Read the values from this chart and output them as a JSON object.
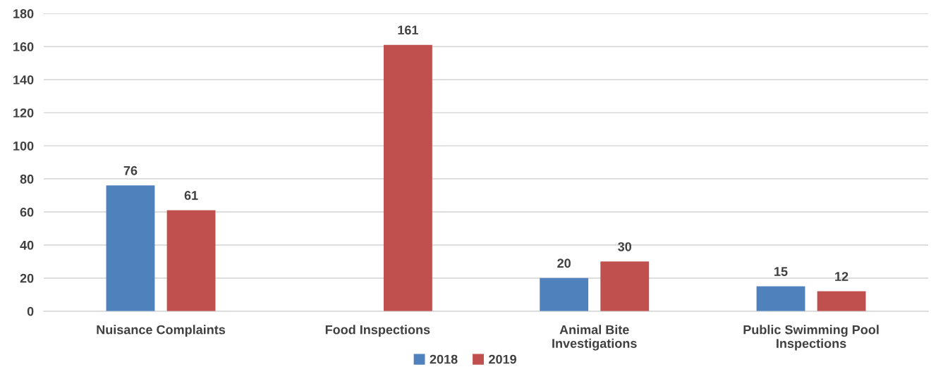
{
  "chart_data": {
    "type": "bar",
    "categories": [
      "Nuisance Complaints",
      "Food Inspections",
      "Animal Bite Investigations",
      "Public Swimming Pool Inspections"
    ],
    "series": [
      {
        "name": "2018",
        "color": "#4f81bd",
        "values": [
          76,
          null,
          20,
          15
        ]
      },
      {
        "name": "2019",
        "color": "#c0504d",
        "values": [
          61,
          161,
          30,
          12
        ]
      }
    ],
    "ylim": [
      0,
      180
    ],
    "yticks": [
      0,
      20,
      40,
      60,
      80,
      100,
      120,
      140,
      160,
      180
    ],
    "grid": "y",
    "legend": "bottom",
    "data_labels": true
  }
}
